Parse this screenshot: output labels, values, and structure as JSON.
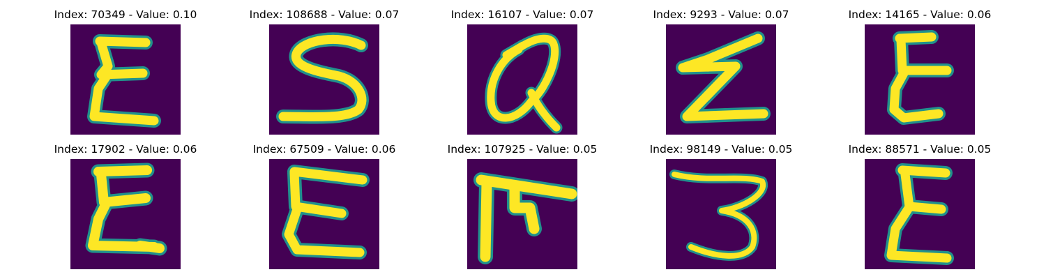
{
  "colors": {
    "background": "#440154",
    "glyph": "#fde725",
    "edge": "#21918c"
  },
  "panels": [
    {
      "index": "70349",
      "value": "0.10",
      "title": "Index: 70349 - Value: 0.10",
      "glyph": "E"
    },
    {
      "index": "108688",
      "value": "0.07",
      "title": "Index: 108688 - Value: 0.07",
      "glyph": "S"
    },
    {
      "index": "16107",
      "value": "0.07",
      "title": "Index: 16107 - Value: 0.07",
      "glyph": "alpha"
    },
    {
      "index": "9293",
      "value": "0.07",
      "title": "Index: 9293 - Value: 0.07",
      "glyph": "Z"
    },
    {
      "index": "14165",
      "value": "0.06",
      "title": "Index: 14165 - Value: 0.06",
      "glyph": "E"
    },
    {
      "index": "17902",
      "value": "0.06",
      "title": "Index: 17902 - Value: 0.06",
      "glyph": "E"
    },
    {
      "index": "67509",
      "value": "0.06",
      "title": "Index: 67509 - Value: 0.06",
      "glyph": "E"
    },
    {
      "index": "107925",
      "value": "0.05",
      "title": "Index: 107925 - Value: 0.05",
      "glyph": "pi"
    },
    {
      "index": "98149",
      "value": "0.05",
      "title": "Index: 98149 - Value: 0.05",
      "glyph": "3"
    },
    {
      "index": "88571",
      "value": "0.05",
      "title": "Index: 88571 - Value: 0.05",
      "glyph": "E"
    }
  ]
}
